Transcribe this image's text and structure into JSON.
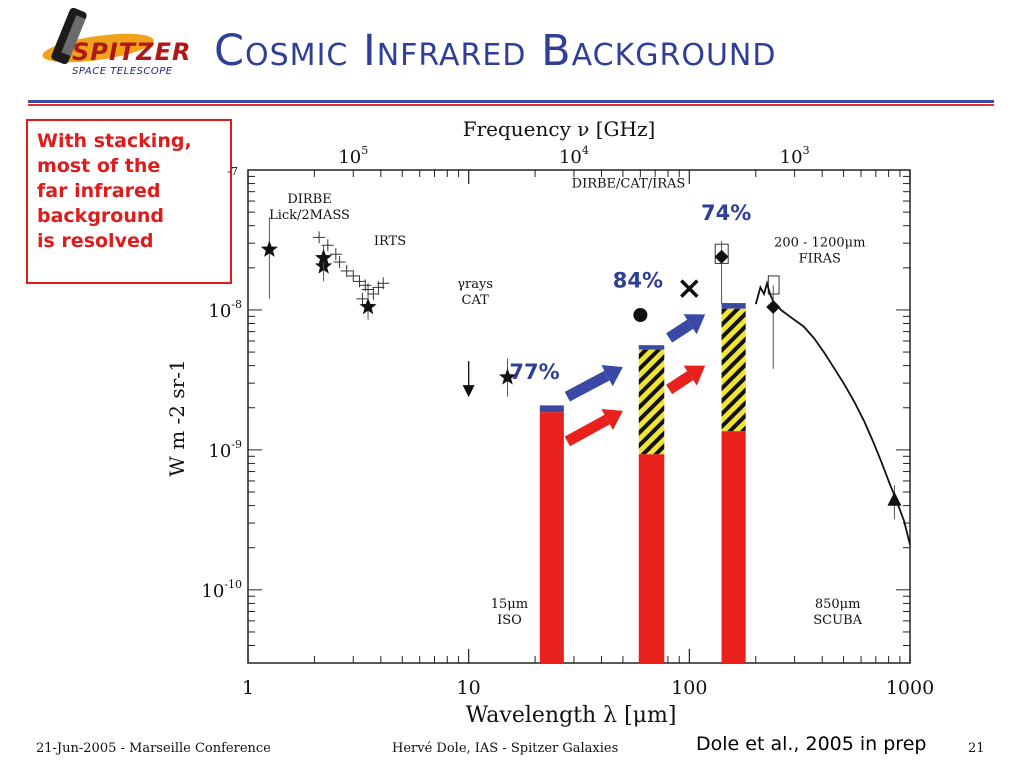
{
  "slide": {
    "logo_top": "SPITZER",
    "logo_bottom": "SPACE TELESCOPE",
    "title": "Cosmic Infrared Background",
    "callout_lines": [
      "With stacking,",
      "most of the",
      "far infrared",
      "background",
      "is resolved"
    ],
    "footer_left": "21-Jun-2005 - Marseille Conference",
    "footer_center": "Hervé Dole, IAS - Spitzer Galaxies",
    "citation": "Dole et al., 2005 in prep",
    "page_number": "21"
  },
  "colors": {
    "title": "#2f3e96",
    "callout": "#e01b1b",
    "resolved_red": "#e8211d",
    "blue_cap": "#3b4aa0",
    "hatch_yellow": "#f1e534",
    "arrow_blue": "#3a48a6",
    "arrow_red": "#e8211d",
    "percent_label": "#2f3e96"
  },
  "chart_data": {
    "type": "scatter",
    "title": "",
    "xlabel": "Wavelength λ [μm]",
    "ylabel": "W m -2 sr-1",
    "top_axis_label": "Frequency ν [GHz]",
    "x_scale": "log",
    "y_scale": "log",
    "xlim": [
      1,
      1000
    ],
    "ylim": [
      3e-11,
      1e-07
    ],
    "x_ticks": [
      {
        "value": 1,
        "label": "1"
      },
      {
        "value": 10,
        "label": "10"
      },
      {
        "value": 100,
        "label": "100"
      },
      {
        "value": 1000,
        "label": "1000"
      }
    ],
    "y_ticks": [
      {
        "value": 1e-08,
        "base": "10",
        "exp": "-8"
      },
      {
        "value": 1e-09,
        "base": "10",
        "exp": "-9"
      },
      {
        "value": 1e-10,
        "base": "10",
        "exp": "-10"
      }
    ],
    "y_top_partial_label": "-7",
    "top_ticks": [
      {
        "wavelength": 3.0,
        "base": "10",
        "exp": "5"
      },
      {
        "wavelength": 30,
        "base": "10",
        "exp": "4"
      },
      {
        "wavelength": 300,
        "base": "10",
        "exp": "3"
      }
    ],
    "annotations": [
      {
        "id": "dirbe-lick",
        "lines": [
          "DIRBE",
          "Lick/2MASS"
        ],
        "x": 1.9,
        "y": 5.8e-08
      },
      {
        "id": "irts",
        "lines": [
          "IRTS"
        ],
        "x": 4.4,
        "y": 2.9e-08
      },
      {
        "id": "gamma",
        "lines": [
          "γrays",
          "CAT"
        ],
        "x": 10.7,
        "y": 1.43e-08
      },
      {
        "id": "dirbe-cat-iras",
        "lines": [
          "DIRBE/CAT/IRAS"
        ],
        "x": 53,
        "y": 7.5e-08
      },
      {
        "id": "firas",
        "lines": [
          "200 - 1200μm",
          "FIRAS"
        ],
        "x": 390,
        "y": 2.85e-08
      },
      {
        "id": "iso",
        "lines": [
          "15μm",
          "ISO"
        ],
        "x": 15.3,
        "y": 7.4e-11
      },
      {
        "id": "scuba",
        "lines": [
          "850μm",
          "SCUBA"
        ],
        "x": 470,
        "y": 7.4e-11
      }
    ],
    "bars": [
      {
        "id": "24um",
        "x_min": 21,
        "x_max": 27,
        "resolved": 1.86e-09,
        "hatched": 1.86e-09,
        "total": 2.08e-09,
        "percent": "77%",
        "label_x": 15.3,
        "label_y": 3.2e-09
      },
      {
        "id": "70um",
        "x_min": 59,
        "x_max": 77,
        "resolved": 9.3e-10,
        "hatched": 5.2e-09,
        "total": 5.6e-09,
        "percent": "84%",
        "label_x": 45,
        "label_y": 1.45e-08
      },
      {
        "id": "160um",
        "x_min": 140,
        "x_max": 180,
        "resolved": 1.36e-09,
        "hatched": 1.02e-08,
        "total": 1.12e-08,
        "percent": "74%",
        "label_x": 113,
        "label_y": 4.4e-08
      }
    ],
    "arrows": [
      {
        "color": "blue",
        "from": [
          28,
          2.4e-09
        ],
        "to": [
          50,
          3.9e-09
        ]
      },
      {
        "color": "red",
        "from": [
          28,
          1.15e-09
        ],
        "to": [
          50,
          1.9e-09
        ]
      },
      {
        "color": "blue",
        "from": [
          81,
          6.3e-09
        ],
        "to": [
          118,
          9.3e-09
        ]
      },
      {
        "color": "red",
        "from": [
          81,
          2.7e-09
        ],
        "to": [
          118,
          4e-09
        ]
      }
    ],
    "points": [
      {
        "marker": "star",
        "x": 1.25,
        "y": 2.7e-08,
        "err": [
          1.2e-08,
          4.6e-08
        ]
      },
      {
        "marker": "star",
        "x": 2.2,
        "y": 2.05e-08,
        "err": [
          1.6e-08,
          2.6e-08
        ]
      },
      {
        "marker": "star",
        "x": 2.2,
        "y": 2.35e-08,
        "err": [
          1.9e-08,
          2.9e-08
        ]
      },
      {
        "marker": "star",
        "x": 3.5,
        "y": 1.05e-08,
        "err": [
          8.5e-09,
          1.3e-08
        ]
      },
      {
        "marker": "star",
        "x": 15,
        "y": 3.3e-09,
        "err": [
          2.4e-09,
          4.5e-09
        ]
      },
      {
        "marker": "dot",
        "x": 60,
        "y": 9.2e-09,
        "err": null
      },
      {
        "marker": "cross",
        "x": 100,
        "y": 1.42e-08,
        "err": null
      },
      {
        "marker": "diamond",
        "x": 140,
        "y": 2.4e-08,
        "err": [
          1.1e-08,
          3.1e-08
        ]
      },
      {
        "marker": "diamond",
        "x": 240,
        "y": 1.05e-08,
        "err": [
          3.8e-09,
          1.5e-08
        ]
      },
      {
        "marker": "upper-limit",
        "x": 10,
        "y": 3e-09,
        "err": null
      },
      {
        "marker": "triangle",
        "x": 850,
        "y": 4.4e-10,
        "err": [
          3.2e-10,
          5.6e-10
        ]
      }
    ],
    "boxes": [
      {
        "x_min": 131,
        "x_max": 150,
        "y_min": 2.15e-08,
        "y_max": 2.95e-08
      },
      {
        "x_min": 228,
        "x_max": 255,
        "y_min": 1.3e-08,
        "y_max": 1.75e-08
      }
    ],
    "irts_points": [
      {
        "x": 2.8,
        "y": 1.9e-08
      },
      {
        "x": 3.0,
        "y": 1.75e-08
      },
      {
        "x": 3.2,
        "y": 1.6e-08
      },
      {
        "x": 3.4,
        "y": 1.5e-08
      },
      {
        "x": 3.5,
        "y": 1.4e-08
      },
      {
        "x": 3.7,
        "y": 1.3e-08
      },
      {
        "x": 3.9,
        "y": 1.45e-08
      },
      {
        "x": 4.1,
        "y": 1.55e-08
      },
      {
        "x": 3.3,
        "y": 1.2e-08
      }
    ],
    "lick_points": [
      {
        "x": 2.1,
        "y": 3.3e-08
      },
      {
        "x": 2.3,
        "y": 2.9e-08
      },
      {
        "x": 2.5,
        "y": 2.5e-08
      },
      {
        "x": 2.6,
        "y": 2.2e-08
      }
    ],
    "firas_spectrum": [
      [
        200,
        1.1e-08
      ],
      [
        210,
        1.45e-08
      ],
      [
        218,
        1.3e-08
      ],
      [
        225,
        1.55e-08
      ],
      [
        232,
        1.3e-08
      ],
      [
        240,
        1.15e-08
      ],
      [
        260,
        1e-08
      ],
      [
        290,
        8.8e-09
      ],
      [
        330,
        7.6e-09
      ],
      [
        370,
        6.2e-09
      ],
      [
        410,
        4.9e-09
      ],
      [
        450,
        3.9e-09
      ],
      [
        500,
        3e-09
      ],
      [
        560,
        2.2e-09
      ],
      [
        620,
        1.6e-09
      ],
      [
        680,
        1.15e-09
      ],
      [
        740,
        8.3e-10
      ],
      [
        800,
        6e-10
      ],
      [
        870,
        4.3e-10
      ],
      [
        940,
        3.1e-10
      ],
      [
        1000,
        2.1e-10
      ]
    ]
  }
}
